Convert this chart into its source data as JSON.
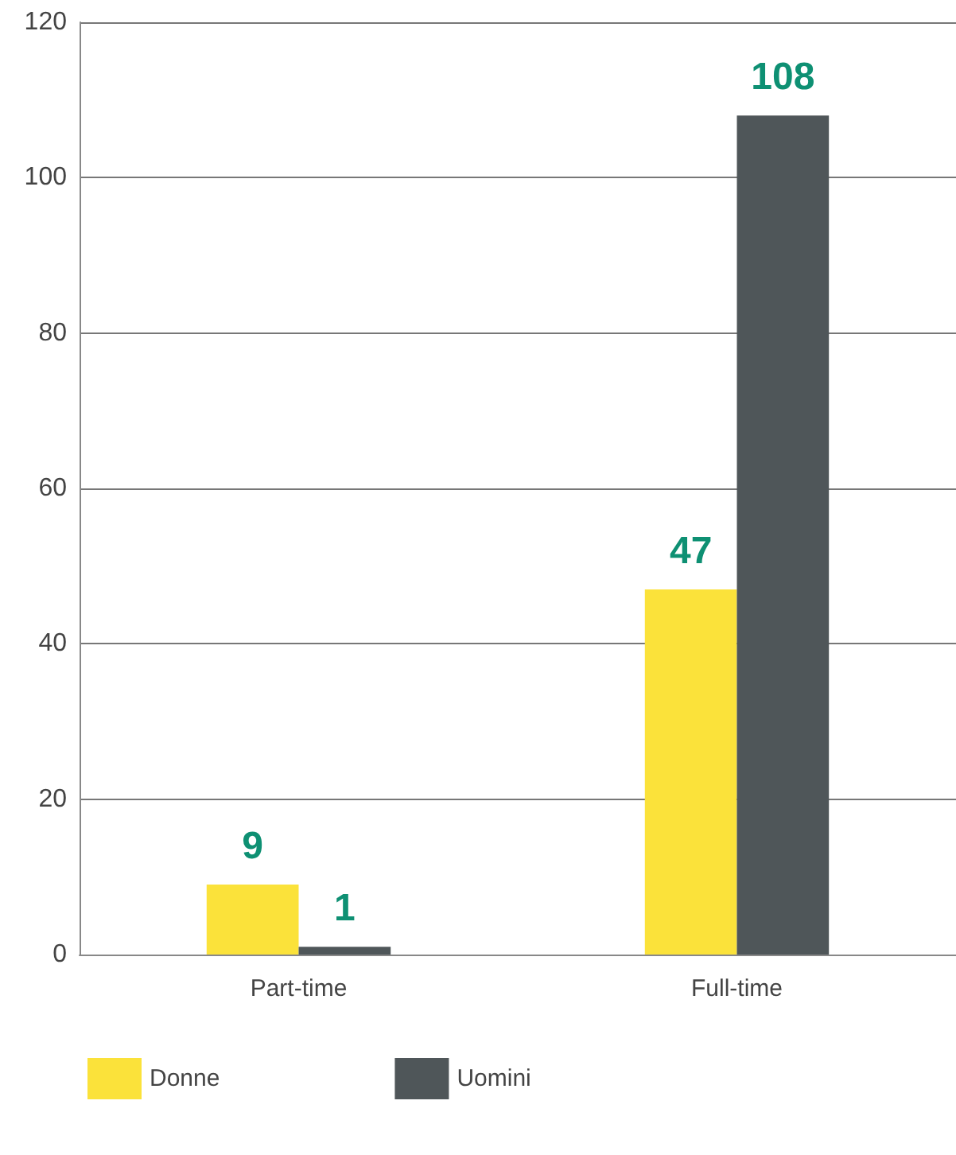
{
  "chart_data": {
    "type": "bar",
    "categories": [
      "Part-time",
      "Full-time"
    ],
    "series": [
      {
        "name": "Donne",
        "color": "#fbe23a",
        "values": [
          9,
          47
        ]
      },
      {
        "name": "Uomini",
        "color": "#4f5659",
        "values": [
          1,
          108
        ]
      }
    ],
    "ylim": [
      0,
      120
    ],
    "yticks": [
      0,
      20,
      40,
      60,
      80,
      100,
      120
    ],
    "grid": "y",
    "data_labels": true,
    "legend": "bottom left"
  }
}
